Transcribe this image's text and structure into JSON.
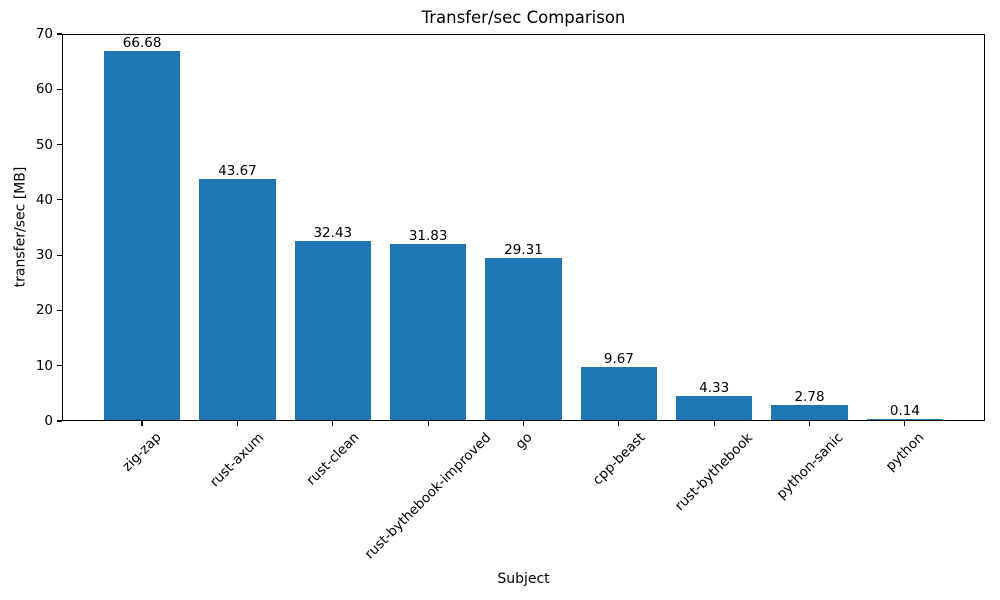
{
  "chart_data": {
    "type": "bar",
    "title": "Transfer/sec Comparison",
    "xlabel": "Subject",
    "ylabel": "transfer/sec [MB]",
    "categories": [
      "zig-zap",
      "rust-axum",
      "rust-clean",
      "rust-bythebook-improved",
      "go",
      "cpp-beast",
      "rust-bythebook",
      "python-sanic",
      "python"
    ],
    "values": [
      66.68,
      43.67,
      32.43,
      31.83,
      29.31,
      9.67,
      4.33,
      2.78,
      0.14
    ],
    "value_labels": [
      "66.68",
      "43.67",
      "32.43",
      "31.83",
      "29.31",
      "9.67",
      "4.33",
      "2.78",
      "0.14"
    ],
    "ylim": [
      0,
      70
    ],
    "yticks": [
      0,
      10,
      20,
      30,
      40,
      50,
      60,
      70
    ],
    "x_tick_rotation_deg": 45,
    "grid": false,
    "legend": null,
    "bar_color": "#1f77b4",
    "axis_color": "#000000",
    "background_color": "#ffffff"
  }
}
